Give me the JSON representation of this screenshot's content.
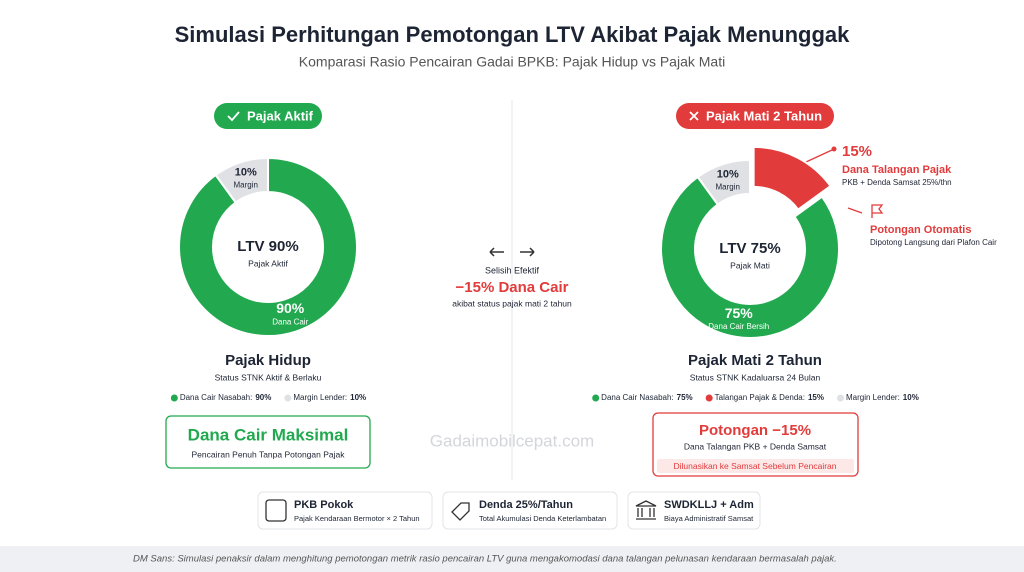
{
  "header": {
    "title": "Simulasi Perhitungan Pemotongan LTV Akibat Pajak Menunggak",
    "subtitle": "Komparasi Rasio Pencairan Gadai BPKB: Pajak Hidup vs Pajak Mati"
  },
  "chart_data": [
    {
      "type": "pie",
      "badge": "Pajak Aktif",
      "center_title": "LTV 90%",
      "center_subtitle": "Pajak Aktif",
      "title": "Pajak Hidup",
      "subtitle": "Status STNK Aktif & Berlaku",
      "categories": [
        "Dana Cair Nasabah:",
        "Margin Lender:"
      ],
      "values": [
        90,
        10
      ],
      "value_labels": [
        "90%",
        "10%"
      ],
      "slice_labels": [
        "Dana Cair",
        "Margin"
      ],
      "colors": [
        "#22a94f",
        "#dfe1e5"
      ],
      "exploded": [
        false,
        false
      ],
      "summary": {
        "title": "Dana Cair Maksimal",
        "subtitle": "Pencairan Penuh Tanpa Potongan Pajak"
      }
    },
    {
      "type": "pie",
      "badge": "Pajak Mati 2 Tahun",
      "center_title": "LTV 75%",
      "center_subtitle": "Pajak Mati",
      "title": "Pajak Mati 2 Tahun",
      "subtitle": "Status STNK Kadaluarsa 24 Bulan",
      "categories": [
        "Dana Cair Nasabah:",
        "Talangan Pajak & Denda:",
        "Margin Lender:"
      ],
      "values": [
        75,
        15,
        10
      ],
      "value_labels": [
        "75%",
        "15%",
        "10%"
      ],
      "slice_labels": [
        "Dana Cair Bersih",
        null,
        "Margin"
      ],
      "colors": [
        "#22a94f",
        "#e23b3b",
        "#dfe1e5"
      ],
      "exploded": [
        false,
        true,
        false
      ],
      "callouts": [
        {
          "title": "Dana Talangan Pajak",
          "subtitle": "PKB + Denda Samsat 25%/thn"
        },
        {
          "title": "Potongan Otomatis",
          "subtitle": "Dipotong Langsung dari Plafon Cair"
        }
      ],
      "summary": {
        "title": "Potongan −15%",
        "subtitle": "Dana Talangan PKB + Denda Samsat",
        "note": "Dilunasikan ke Samsat Sebelum Pencairan"
      }
    }
  ],
  "comparison": {
    "label": "Selisih Efektif",
    "value": "−15% Dana Cair",
    "note": "akibat status pajak mati 2 tahun"
  },
  "watermark": "Gadaimobilcepat.com",
  "cards": [
    {
      "title": "PKB Pokok",
      "subtitle": "Pajak Kendaraan Bermotor × 2 Tahun"
    },
    {
      "title": "Denda 25%/Tahun",
      "subtitle": "Total Akumulasi Denda Keterlambatan"
    },
    {
      "title": "SWDKLLJ + Adm",
      "subtitle": "Biaya Administratif Samsat"
    }
  ],
  "footer": "DM Sans: Simulasi penaksir dalam menghitung pemotongan metrik rasio pencairan LTV guna mengakomodasi dana talangan pelunasan kendaraan bermasalah pajak."
}
